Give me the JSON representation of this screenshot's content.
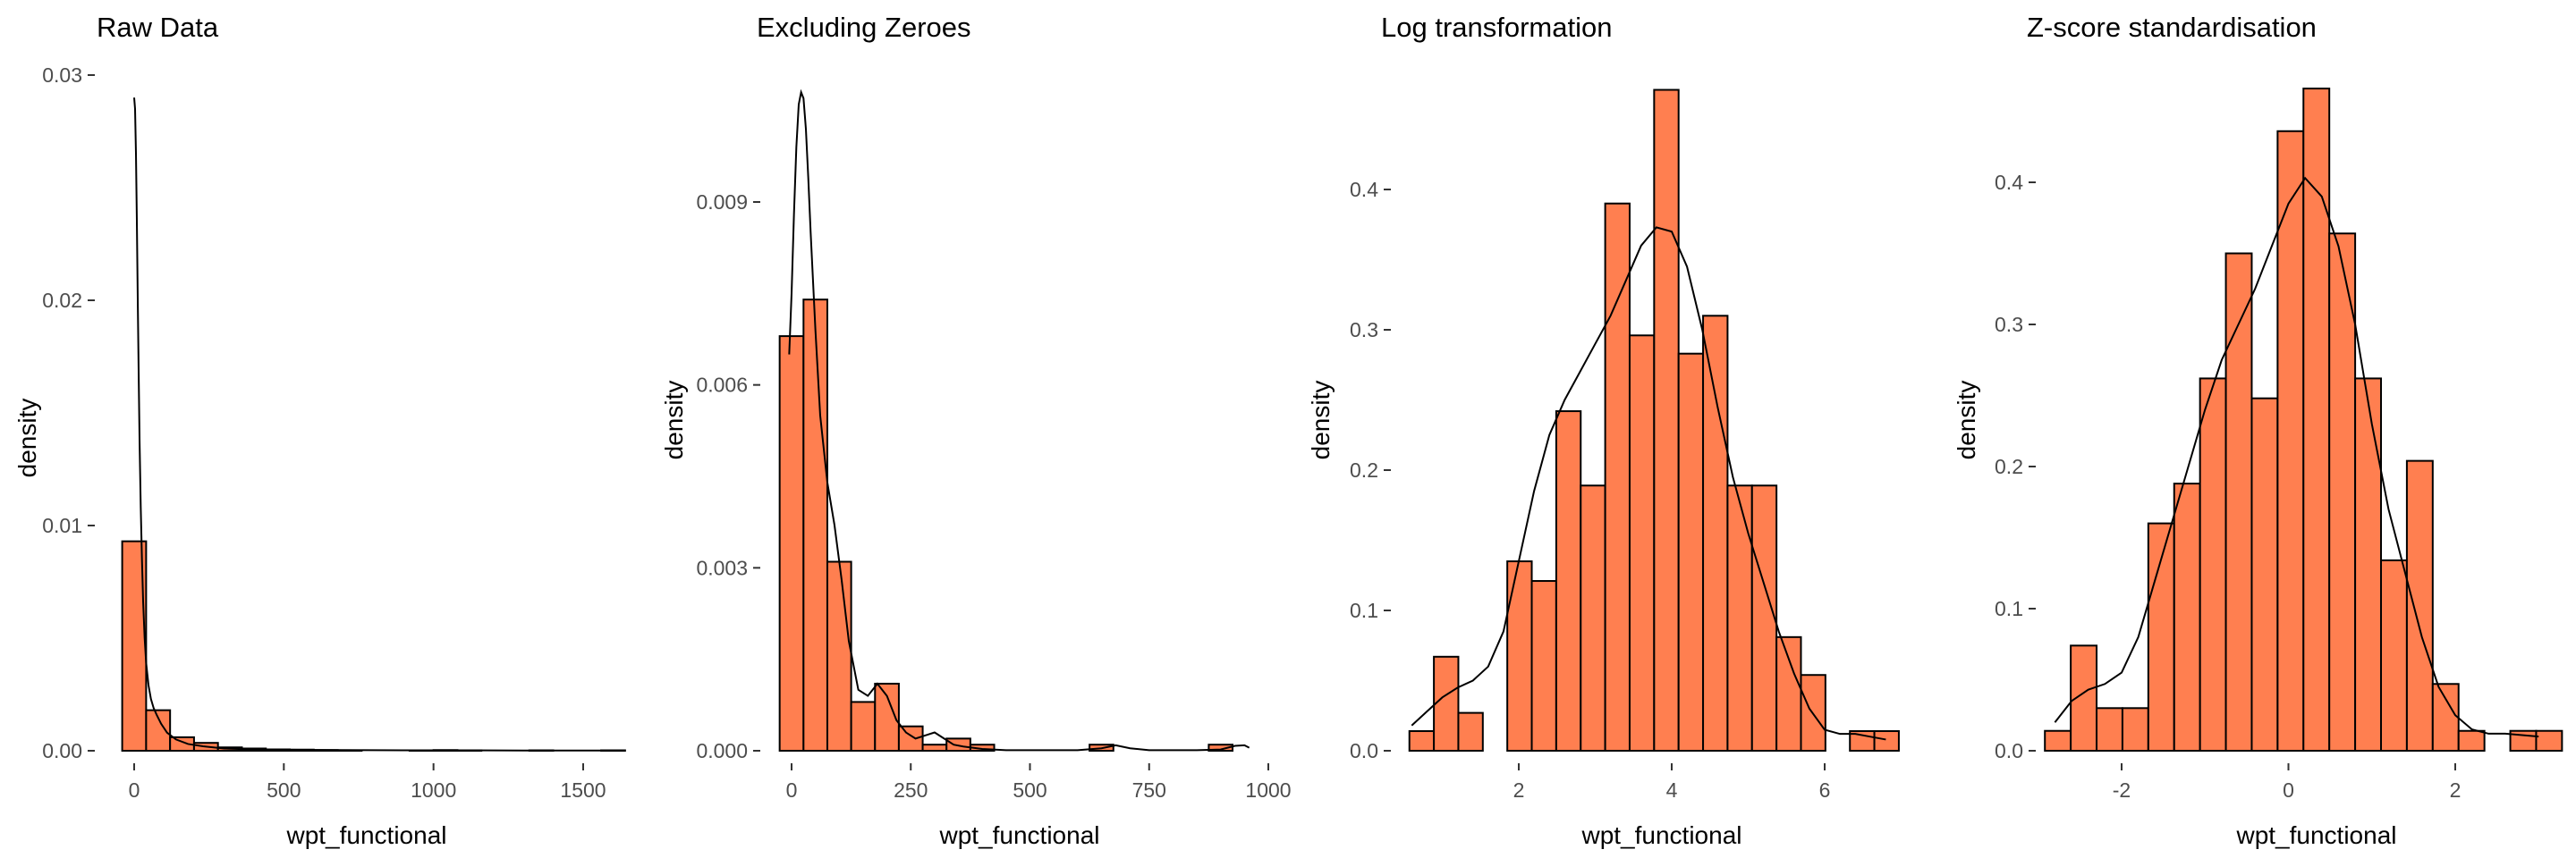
{
  "colors": {
    "bar_fill": "#FF7F50",
    "bar_stroke": "#000000",
    "line": "#000000",
    "tick_text": "#4d4d4d"
  },
  "chart_data": [
    {
      "type": "bar",
      "subtype": "histogram-with-density",
      "title": "Raw Data",
      "xlabel": "wpt_functional",
      "ylabel": "density",
      "xlim": [
        -40,
        1600
      ],
      "ylim": [
        0,
        0.03
      ],
      "xticks": [
        0,
        500,
        1000,
        1500
      ],
      "xtick_labels": [
        "0",
        "500",
        "1000",
        "1500"
      ],
      "yticks": [
        0,
        0.01,
        0.02,
        0.03
      ],
      "ytick_labels": [
        "0.00",
        "0.01",
        "0.02",
        "0.03"
      ],
      "grid": false,
      "bin_edges": [
        -40,
        40,
        120,
        200,
        280,
        360,
        440,
        520,
        600,
        680,
        760,
        840,
        920,
        1000,
        1080,
        1160,
        1240,
        1320,
        1400,
        1480,
        1560,
        1640
      ],
      "values": [
        0.0093,
        0.0018,
        0.0006,
        0.00035,
        0.00015,
        0.0001,
        6e-05,
        5e-05,
        3e-05,
        2e-05,
        0,
        0,
        2e-05,
        3e-05,
        2e-05,
        0,
        0,
        2e-05,
        0,
        0,
        2e-05
      ],
      "density_x": [
        0,
        3,
        6,
        9,
        12,
        15,
        18,
        22,
        26,
        30,
        35,
        40,
        48,
        56,
        65,
        75,
        90,
        110,
        140,
        180,
        230,
        300,
        400,
        550,
        700,
        900,
        1100,
        1300,
        1500,
        1600
      ],
      "density_y": [
        0.029,
        0.0285,
        0.0265,
        0.0235,
        0.02,
        0.0168,
        0.0138,
        0.0108,
        0.0085,
        0.0066,
        0.005,
        0.0039,
        0.0029,
        0.0023,
        0.0019,
        0.0016,
        0.0012,
        0.0008,
        0.0005,
        0.0003,
        0.0002,
        0.0001,
        6e-05,
        4e-05,
        3e-05,
        2e-05,
        2e-05,
        1e-05,
        1e-05,
        1e-05
      ]
    },
    {
      "type": "bar",
      "subtype": "histogram-with-density",
      "title": "Excluding Zeroes",
      "xlabel": "wpt_functional",
      "ylabel": "density",
      "xlim": [
        -25,
        975
      ],
      "ylim": [
        0,
        0.0108
      ],
      "xticks": [
        0,
        250,
        500,
        750,
        1000
      ],
      "xtick_labels": [
        "0",
        "250",
        "500",
        "750",
        "1000"
      ],
      "yticks": [
        0,
        0.003,
        0.006,
        0.009
      ],
      "ytick_labels": [
        "0.000",
        "0.003",
        "0.006",
        "0.009"
      ],
      "grid": false,
      "bin_edges": [
        -25,
        25,
        75,
        125,
        175,
        225,
        275,
        325,
        375,
        425,
        475,
        525,
        575,
        625,
        675,
        725,
        775,
        825,
        875,
        925,
        975
      ],
      "values": [
        0.0068,
        0.0074,
        0.0031,
        0.0008,
        0.0011,
        0.0004,
        0.0001,
        0.0002,
        0.0001,
        0,
        0,
        0,
        0,
        0.0001,
        0,
        0,
        0,
        0,
        0.0001,
        0
      ],
      "density_x": [
        -5,
        0,
        5,
        10,
        15,
        20,
        25,
        30,
        35,
        40,
        50,
        60,
        75,
        90,
        105,
        120,
        140,
        160,
        180,
        200,
        220,
        240,
        260,
        280,
        300,
        320,
        340,
        360,
        380,
        400,
        450,
        500,
        550,
        600,
        650,
        680,
        710,
        750,
        800,
        850,
        900,
        930,
        950,
        960
      ],
      "density_y": [
        0.0065,
        0.0075,
        0.0088,
        0.0099,
        0.0106,
        0.0108,
        0.0107,
        0.0102,
        0.0094,
        0.0085,
        0.0069,
        0.0055,
        0.0044,
        0.0037,
        0.0028,
        0.0018,
        0.001,
        0.0009,
        0.0011,
        0.0009,
        0.0005,
        0.0003,
        0.0002,
        0.00025,
        0.0003,
        0.0002,
        0.0001,
        7e-05,
        5e-05,
        3e-05,
        1e-05,
        1e-05,
        1e-05,
        1e-05,
        4e-05,
        9e-05,
        4e-05,
        1e-05,
        1e-05,
        1e-05,
        2e-05,
        8e-05,
        9e-05,
        5e-05
      ]
    },
    {
      "type": "bar",
      "subtype": "histogram-with-density",
      "title": "Log transformation",
      "xlabel": "wpt_functional",
      "ylabel": "density",
      "xlim": [
        0.5,
        7
      ],
      "ylim": [
        0,
        0.47
      ],
      "xticks": [
        2,
        4,
        6
      ],
      "xtick_labels": [
        "2",
        "4",
        "6"
      ],
      "yticks": [
        0,
        0.1,
        0.2,
        0.3,
        0.4
      ],
      "ytick_labels": [
        "0.0",
        "0.1",
        "0.2",
        "0.3",
        "0.4"
      ],
      "grid": false,
      "bin_edges": [
        0.57,
        0.89,
        1.21,
        1.53,
        1.85,
        2.17,
        2.49,
        2.81,
        3.13,
        3.45,
        3.77,
        4.09,
        4.41,
        4.73,
        5.05,
        5.37,
        5.69,
        6.01,
        6.33,
        6.65,
        6.97
      ],
      "values": [
        0.014,
        0.067,
        0.027,
        0,
        0.135,
        0.121,
        0.242,
        0.189,
        0.39,
        0.296,
        0.471,
        0.283,
        0.31,
        0.189,
        0.189,
        0.081,
        0.054,
        0,
        0.014,
        0.014
      ],
      "density_x": [
        0.6,
        0.8,
        1.0,
        1.2,
        1.4,
        1.6,
        1.8,
        2.0,
        2.2,
        2.4,
        2.6,
        2.8,
        3.0,
        3.2,
        3.4,
        3.6,
        3.8,
        4.0,
        4.2,
        4.4,
        4.6,
        4.8,
        5.0,
        5.2,
        5.4,
        5.6,
        5.8,
        6.0,
        6.2,
        6.4,
        6.6,
        6.8
      ],
      "density_y": [
        0.018,
        0.028,
        0.038,
        0.045,
        0.05,
        0.06,
        0.085,
        0.135,
        0.185,
        0.225,
        0.25,
        0.27,
        0.29,
        0.31,
        0.335,
        0.36,
        0.373,
        0.37,
        0.345,
        0.3,
        0.245,
        0.195,
        0.155,
        0.12,
        0.085,
        0.055,
        0.03,
        0.015,
        0.012,
        0.012,
        0.01,
        0.008
      ]
    },
    {
      "type": "bar",
      "subtype": "histogram-with-density",
      "title": "Z-score standardisation",
      "xlabel": "wpt_functional",
      "ylabel": "density",
      "xlim": [
        -3,
        3.3
      ],
      "ylim": [
        0,
        0.47
      ],
      "xticks": [
        -2,
        0,
        2
      ],
      "xtick_labels": [
        "-2",
        "0",
        "2"
      ],
      "yticks": [
        0,
        0.1,
        0.2,
        0.3,
        0.4
      ],
      "ytick_labels": [
        "0.0",
        "0.1",
        "0.2",
        "0.3",
        "0.4"
      ],
      "grid": false,
      "bin_edges": [
        -2.92,
        -2.61,
        -2.3,
        -1.99,
        -1.68,
        -1.37,
        -1.06,
        -0.75,
        -0.44,
        -0.13,
        0.18,
        0.49,
        0.8,
        1.11,
        1.42,
        1.73,
        2.04,
        2.35,
        2.66,
        2.97,
        3.28
      ],
      "values": [
        0.014,
        0.074,
        0.03,
        0.03,
        0.16,
        0.188,
        0.262,
        0.35,
        0.248,
        0.436,
        0.466,
        0.364,
        0.262,
        0.134,
        0.204,
        0.047,
        0.014,
        0,
        0.014,
        0.014
      ],
      "density_x": [
        -2.8,
        -2.6,
        -2.4,
        -2.2,
        -2.0,
        -1.8,
        -1.6,
        -1.4,
        -1.2,
        -1.0,
        -0.8,
        -0.6,
        -0.4,
        -0.2,
        0.0,
        0.2,
        0.4,
        0.6,
        0.8,
        1.0,
        1.2,
        1.4,
        1.6,
        1.8,
        2.0,
        2.2,
        2.4,
        2.6,
        2.8,
        3.0
      ],
      "density_y": [
        0.02,
        0.035,
        0.043,
        0.047,
        0.055,
        0.08,
        0.12,
        0.16,
        0.2,
        0.24,
        0.275,
        0.3,
        0.325,
        0.355,
        0.385,
        0.403,
        0.39,
        0.355,
        0.3,
        0.23,
        0.17,
        0.125,
        0.08,
        0.045,
        0.025,
        0.015,
        0.012,
        0.012,
        0.011,
        0.01
      ]
    }
  ]
}
